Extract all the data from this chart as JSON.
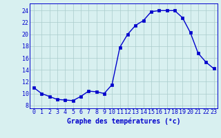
{
  "hours": [
    0,
    1,
    2,
    3,
    4,
    5,
    6,
    7,
    8,
    9,
    10,
    11,
    12,
    13,
    14,
    15,
    16,
    17,
    18,
    19,
    20,
    21,
    22,
    23
  ],
  "temperatures": [
    11.0,
    10.0,
    9.5,
    9.0,
    8.9,
    8.8,
    9.5,
    10.4,
    10.3,
    10.0,
    11.5,
    17.8,
    20.0,
    21.5,
    22.3,
    23.8,
    24.0,
    24.0,
    24.0,
    22.8,
    20.3,
    16.8,
    15.3,
    14.2
  ],
  "line_color": "#0000cc",
  "marker": "s",
  "markersize": 2.2,
  "linewidth": 1.0,
  "background_color": "#d8f0f0",
  "grid_color": "#aacccc",
  "xlabel": "Graphe des températures (°c)",
  "xlabel_fontsize": 7,
  "tick_fontsize": 6,
  "yticks": [
    8,
    10,
    12,
    14,
    16,
    18,
    20,
    22,
    24
  ],
  "ylim": [
    7.5,
    25.2
  ],
  "xlim": [
    -0.5,
    23.5
  ]
}
